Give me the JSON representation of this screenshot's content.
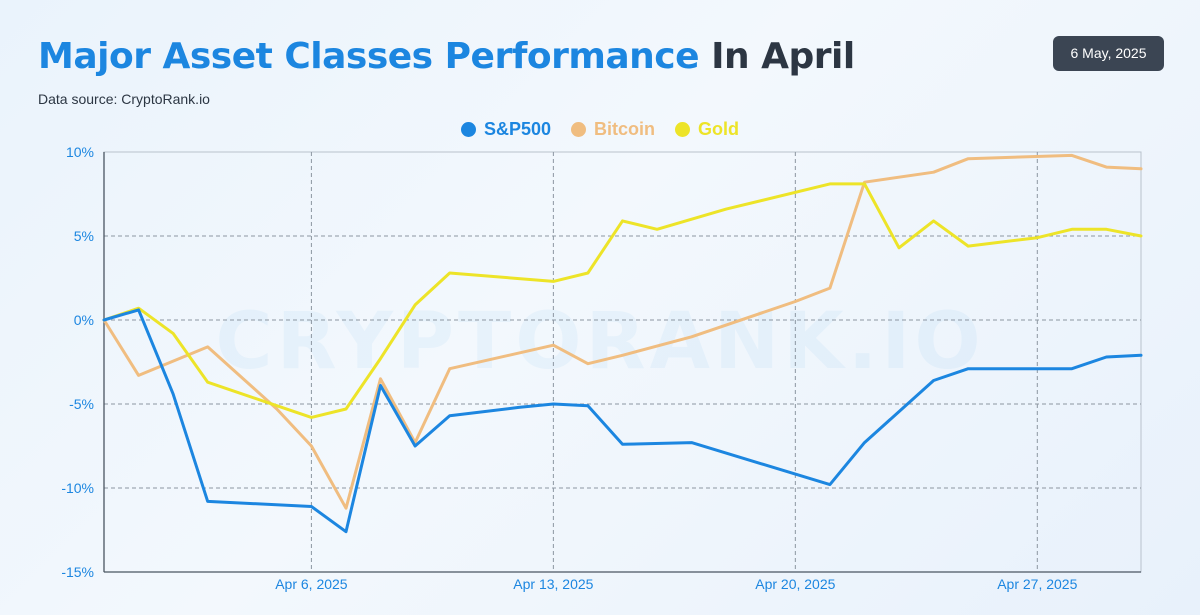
{
  "header": {
    "title_highlight": "Major Asset Classes Performance",
    "title_rest": "In April",
    "source": "Data source: CryptoRank.io",
    "date": "6 May, 2025",
    "watermark": "CRYPTORANK.IO"
  },
  "colors": {
    "sp500": "#1c86e0",
    "bitcoin": "#f0bd80",
    "gold": "#ede428",
    "title_accent": "#1c86e0",
    "title_dark": "#2c3643",
    "axis_text": "#1c86e0"
  },
  "chart_data": {
    "type": "line",
    "title": "Major Asset Classes Performance In April",
    "x_unit": "days",
    "xlim": [
      "2025-03-31",
      "2025-04-30"
    ],
    "ylim": [
      -15,
      10
    ],
    "yticks": [
      10,
      5,
      0,
      -5,
      -10,
      -15
    ],
    "ytick_labels": [
      "10%",
      "5%",
      "0%",
      "-5%",
      "-10%",
      "-15%"
    ],
    "xticks": [
      "2025-04-06",
      "2025-04-13",
      "2025-04-20",
      "2025-04-27"
    ],
    "xtick_labels": [
      "Apr 6, 2025",
      "Apr 13, 2025",
      "Apr 20, 2025",
      "Apr 27, 2025"
    ],
    "grid": true,
    "legend_position": "top-center",
    "series": [
      {
        "name": "S&P500",
        "color_key": "sp500",
        "points": [
          [
            "2025-03-31",
            0.0
          ],
          [
            "2025-04-01",
            0.6
          ],
          [
            "2025-04-02",
            -4.4
          ],
          [
            "2025-04-03",
            -10.8
          ],
          [
            "2025-04-06",
            -11.1
          ],
          [
            "2025-04-07",
            -12.6
          ],
          [
            "2025-04-08",
            -3.9
          ],
          [
            "2025-04-09",
            -7.5
          ],
          [
            "2025-04-10",
            -5.7
          ],
          [
            "2025-04-12",
            -5.2
          ],
          [
            "2025-04-13",
            -5.0
          ],
          [
            "2025-04-14",
            -5.1
          ],
          [
            "2025-04-15",
            -7.4
          ],
          [
            "2025-04-17",
            -7.3
          ],
          [
            "2025-04-21",
            -9.8
          ],
          [
            "2025-04-22",
            -7.3
          ],
          [
            "2025-04-24",
            -3.6
          ],
          [
            "2025-04-25",
            -2.9
          ],
          [
            "2025-04-28",
            -2.9
          ],
          [
            "2025-04-29",
            -2.2
          ],
          [
            "2025-04-30",
            -2.1
          ]
        ]
      },
      {
        "name": "Bitcoin",
        "color_key": "bitcoin",
        "points": [
          [
            "2025-03-31",
            0.0
          ],
          [
            "2025-04-01",
            -3.3
          ],
          [
            "2025-04-03",
            -1.6
          ],
          [
            "2025-04-05",
            -5.3
          ],
          [
            "2025-04-06",
            -7.5
          ],
          [
            "2025-04-07",
            -11.2
          ],
          [
            "2025-04-08",
            -3.5
          ],
          [
            "2025-04-09",
            -7.3
          ],
          [
            "2025-04-10",
            -2.9
          ],
          [
            "2025-04-13",
            -1.5
          ],
          [
            "2025-04-14",
            -2.6
          ],
          [
            "2025-04-15",
            -2.1
          ],
          [
            "2025-04-17",
            -1.0
          ],
          [
            "2025-04-20",
            1.1
          ],
          [
            "2025-04-21",
            1.9
          ],
          [
            "2025-04-22",
            8.2
          ],
          [
            "2025-04-24",
            8.8
          ],
          [
            "2025-04-25",
            9.6
          ],
          [
            "2025-04-28",
            9.8
          ],
          [
            "2025-04-29",
            9.1
          ],
          [
            "2025-04-30",
            9.0
          ]
        ]
      },
      {
        "name": "Gold",
        "color_key": "gold",
        "points": [
          [
            "2025-03-31",
            0.0
          ],
          [
            "2025-04-01",
            0.7
          ],
          [
            "2025-04-02",
            -0.8
          ],
          [
            "2025-04-03",
            -3.7
          ],
          [
            "2025-04-05",
            -5.1
          ],
          [
            "2025-04-06",
            -5.8
          ],
          [
            "2025-04-07",
            -5.3
          ],
          [
            "2025-04-08",
            -2.3
          ],
          [
            "2025-04-09",
            0.9
          ],
          [
            "2025-04-10",
            2.8
          ],
          [
            "2025-04-13",
            2.3
          ],
          [
            "2025-04-14",
            2.8
          ],
          [
            "2025-04-15",
            5.9
          ],
          [
            "2025-04-16",
            5.4
          ],
          [
            "2025-04-18",
            6.6
          ],
          [
            "2025-04-21",
            8.1
          ],
          [
            "2025-04-22",
            8.1
          ],
          [
            "2025-04-23",
            4.3
          ],
          [
            "2025-04-24",
            5.9
          ],
          [
            "2025-04-25",
            4.4
          ],
          [
            "2025-04-27",
            4.9
          ],
          [
            "2025-04-28",
            5.4
          ],
          [
            "2025-04-29",
            5.4
          ],
          [
            "2025-04-30",
            5.0
          ]
        ]
      }
    ]
  }
}
